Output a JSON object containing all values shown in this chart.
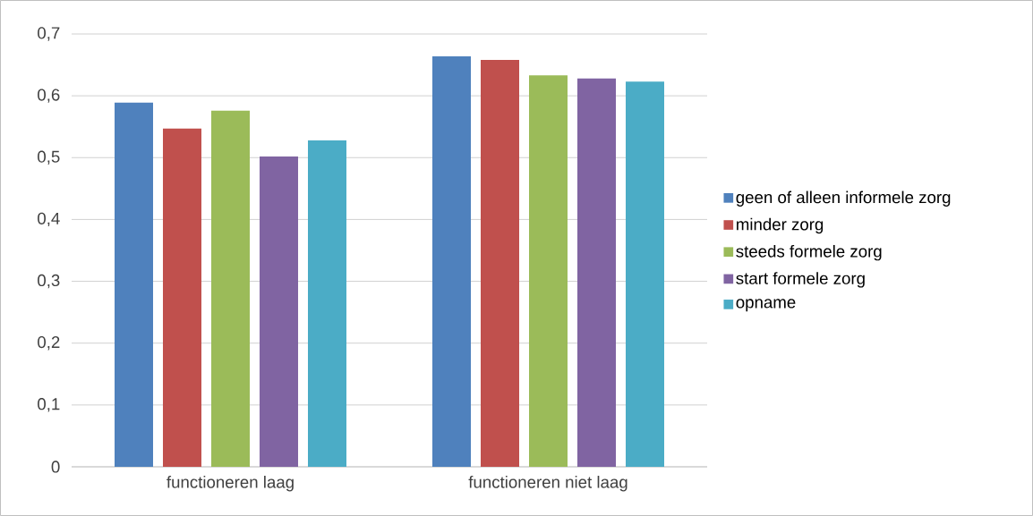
{
  "chart_data": {
    "type": "bar",
    "categories": [
      "functioneren laag",
      "functioneren niet laag"
    ],
    "series": [
      {
        "name": "geen of alleen informele zorg",
        "color": "#4f81bd",
        "values": [
          0.589,
          0.664
        ]
      },
      {
        "name": "minder zorg",
        "color": "#c0504d",
        "values": [
          0.547,
          0.658
        ]
      },
      {
        "name": "steeds formele zorg",
        "color": "#9bbb59",
        "values": [
          0.576,
          0.633
        ]
      },
      {
        "name": "start formele zorg",
        "color": "#8064a2",
        "values": [
          0.502,
          0.628
        ]
      },
      {
        "name": "opname",
        "color": "#4bacc6",
        "values": [
          0.528,
          0.623
        ]
      }
    ],
    "ylim": [
      0,
      0.7
    ],
    "yticks": [
      0,
      {
        "value": 0.1,
        "label": "0,1"
      },
      {
        "value": 0.2,
        "label": "0,2"
      },
      {
        "value": 0.3,
        "label": "0,3"
      },
      {
        "value": 0.4,
        "label": "0,4"
      },
      {
        "value": 0.5,
        "label": "0,5"
      },
      {
        "value": 0.6,
        "label": "0,6"
      },
      {
        "value": 0.7,
        "label": "0,7"
      }
    ],
    "grid": "y",
    "legend": "right"
  }
}
